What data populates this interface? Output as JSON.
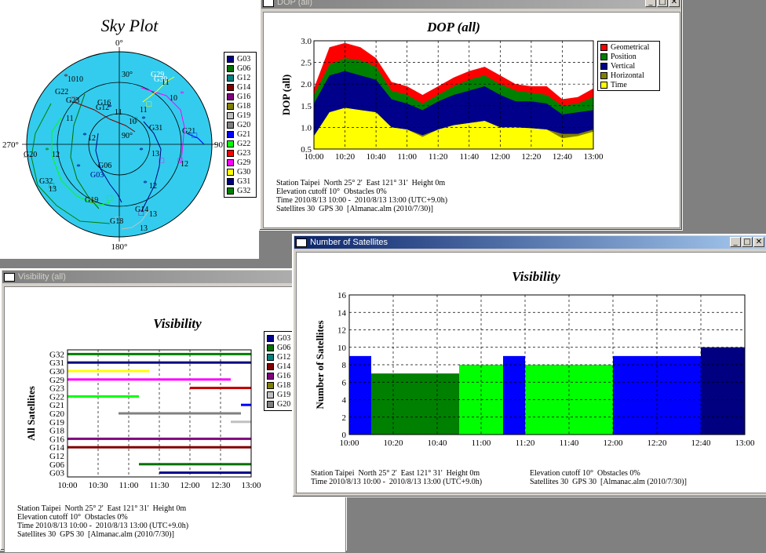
{
  "sky_window": {
    "title": "Sky Plot",
    "directions": {
      "n": "0°",
      "e": "90°",
      "s": "180°",
      "w": "270°"
    },
    "ring_labels": {
      "r30": "30°",
      "r90": "90°"
    },
    "legend": [
      {
        "name": "G03",
        "color": "#00008b"
      },
      {
        "name": "G06",
        "color": "#007000"
      },
      {
        "name": "G12",
        "color": "#008080"
      },
      {
        "name": "G14",
        "color": "#800000"
      },
      {
        "name": "G16",
        "color": "#800080"
      },
      {
        "name": "G18",
        "color": "#808000"
      },
      {
        "name": "G19",
        "color": "#c0c0c0"
      },
      {
        "name": "G20",
        "color": "#808080"
      },
      {
        "name": "G21",
        "color": "#0000ff"
      },
      {
        "name": "G22",
        "color": "#00ff00"
      },
      {
        "name": "G23",
        "color": "#ff0000"
      },
      {
        "name": "G29",
        "color": "#ff00ff"
      },
      {
        "name": "G30",
        "color": "#ffff00"
      },
      {
        "name": "G31",
        "color": "#000080"
      },
      {
        "name": "G32",
        "color": "#008000"
      }
    ],
    "sat_labels": [
      {
        "text": "G03",
        "color": "#00008b"
      },
      {
        "text": "G06",
        "color": "#000"
      },
      {
        "text": "G12",
        "color": "#000"
      },
      {
        "text": "G14",
        "color": "#000"
      },
      {
        "text": "G16",
        "color": "#000"
      },
      {
        "text": "G18",
        "color": "#000"
      },
      {
        "text": "G19",
        "color": "#000"
      },
      {
        "text": "G20",
        "color": "#000"
      },
      {
        "text": "G21",
        "color": "#000"
      },
      {
        "text": "G22",
        "color": "#000"
      },
      {
        "text": "G23",
        "color": "#000"
      },
      {
        "text": "G29",
        "color": "#fff"
      },
      {
        "text": "G30",
        "color": "#fff"
      },
      {
        "text": "G31",
        "color": "#000"
      },
      {
        "text": "G32",
        "color": "#000"
      }
    ],
    "hour_labels": [
      "10",
      "11",
      "12",
      "13",
      "10",
      "11",
      "12",
      "13",
      "10",
      "11",
      "12",
      "13",
      "10",
      "11",
      "12",
      "13"
    ]
  },
  "dop_window": {
    "window_title": "DOP (all)",
    "chart_data": {
      "type": "area",
      "title": "DOP (all)",
      "ylabel": "DOP (all)",
      "xlabel": "",
      "ylim": [
        0.5,
        3.0
      ],
      "yticks": [
        "0.5",
        "1.0",
        "1.5",
        "2.0",
        "2.5",
        "3.0"
      ],
      "x": [
        "10:00",
        "10:10",
        "10:20",
        "10:30",
        "10:40",
        "10:50",
        "11:00",
        "11:10",
        "11:20",
        "11:30",
        "11:40",
        "11:50",
        "12:00",
        "12:10",
        "12:20",
        "12:30",
        "12:40",
        "12:50",
        "13:00"
      ],
      "xtick_labels": [
        "10:00",
        "10:20",
        "10:40",
        "11:00",
        "11:20",
        "11:40",
        "12:00",
        "12:20",
        "12:40",
        "13:00"
      ],
      "series": [
        {
          "name": "Geometrical",
          "color": "#ff0000",
          "values": [
            1.9,
            2.85,
            2.95,
            2.85,
            2.6,
            2.05,
            1.95,
            1.75,
            1.95,
            2.15,
            2.3,
            2.4,
            2.2,
            2.0,
            1.95,
            1.95,
            1.65,
            1.7,
            1.9
          ]
        },
        {
          "name": "Position",
          "color": "#008000",
          "values": [
            1.75,
            2.45,
            2.6,
            2.55,
            2.4,
            1.85,
            1.75,
            1.55,
            1.75,
            1.95,
            2.1,
            2.2,
            2.0,
            1.85,
            1.8,
            1.75,
            1.5,
            1.55,
            1.7
          ]
        },
        {
          "name": "Vertical",
          "color": "#00008b",
          "values": [
            1.55,
            2.2,
            2.3,
            2.2,
            2.1,
            1.65,
            1.55,
            1.4,
            1.6,
            1.75,
            1.85,
            1.95,
            1.75,
            1.6,
            1.6,
            1.55,
            1.3,
            1.35,
            1.4
          ]
        },
        {
          "name": "Horizontal",
          "color": "#808000",
          "values": [
            0.8,
            1.35,
            1.45,
            1.4,
            1.35,
            1.0,
            0.95,
            0.82,
            0.95,
            1.05,
            1.1,
            1.15,
            1.0,
            1.0,
            0.98,
            0.95,
            0.85,
            0.85,
            0.95
          ]
        },
        {
          "name": "Time",
          "color": "#ffff00",
          "values": [
            0.8,
            1.35,
            1.45,
            1.4,
            1.35,
            1.0,
            0.95,
            0.78,
            0.95,
            1.05,
            1.1,
            1.15,
            1.0,
            1.0,
            0.98,
            0.95,
            0.75,
            0.8,
            0.9
          ]
        }
      ]
    },
    "info": [
      "Station Taipei  North 25° 2'  East 121° 31'  Height 0m",
      "Elevation cutoff 10°  Obstacles 0%",
      "Time 2010/8/13 10:00 -  2010/8/13 13:00 (UTC+9.0h)",
      "Satellites 30  GPS 30  [Almanac.alm (2010/7/30)]"
    ]
  },
  "vis_window": {
    "window_title": "Visibility (all)",
    "chart_data": {
      "type": "bar",
      "title": "Visibility",
      "ylabel": "All Satellites",
      "xlabel": "",
      "categories": [
        "G32",
        "G31",
        "G30",
        "G29",
        "G23",
        "G22",
        "G21",
        "G20",
        "G19",
        "G18",
        "G16",
        "G14",
        "G12",
        "G06",
        "G03"
      ],
      "xtick_labels": [
        "10:00",
        "10:30",
        "11:00",
        "11:30",
        "12:00",
        "12:30",
        "13:00"
      ],
      "xlim_minutes_after_10": [
        0,
        180
      ],
      "intervals": [
        {
          "sat": "G32",
          "color": "#008000",
          "start": 0,
          "end": 180
        },
        {
          "sat": "G31",
          "color": "#000080",
          "start": 0,
          "end": 180
        },
        {
          "sat": "G30",
          "color": "#ffff00",
          "start": 0,
          "end": 80
        },
        {
          "sat": "G29",
          "color": "#ff00ff",
          "start": 0,
          "end": 160
        },
        {
          "sat": "G23",
          "color": "#c00000",
          "start": 120,
          "end": 180
        },
        {
          "sat": "G22",
          "color": "#00ff00",
          "start": 0,
          "end": 70
        },
        {
          "sat": "G21",
          "color": "#0000ff",
          "start": 170,
          "end": 180
        },
        {
          "sat": "G20",
          "color": "#808080",
          "start": 50,
          "end": 170
        },
        {
          "sat": "G19",
          "color": "#c0c0c0",
          "start": 160,
          "end": 180
        },
        {
          "sat": "G16",
          "color": "#800080",
          "start": 0,
          "end": 180
        },
        {
          "sat": "G14",
          "color": "#800000",
          "start": 0,
          "end": 180
        },
        {
          "sat": "G06",
          "color": "#007000",
          "start": 70,
          "end": 180
        },
        {
          "sat": "G03",
          "color": "#00008b",
          "start": 90,
          "end": 180
        }
      ]
    },
    "legend": [
      {
        "name": "G03",
        "color": "#00008b"
      },
      {
        "name": "G06",
        "color": "#007000"
      },
      {
        "name": "G12",
        "color": "#008080"
      },
      {
        "name": "G14",
        "color": "#800000"
      },
      {
        "name": "G16",
        "color": "#800080"
      },
      {
        "name": "G18",
        "color": "#808000"
      },
      {
        "name": "G19",
        "color": "#c0c0c0"
      },
      {
        "name": "G20",
        "color": "#808080"
      }
    ],
    "info": [
      "Station Taipei  North 25° 2'  East 121° 31'  Height 0m",
      "Elevation cutoff 10°  Obstacles 0%",
      "Time 2010/8/13 10:00 -  2010/8/13 13:00 (UTC+9.0h)",
      "Satellites 30  GPS 30  [Almanac.alm (2010/7/30)]"
    ]
  },
  "num_window": {
    "window_title": "Number of Satellites",
    "chart_data": {
      "type": "bar",
      "title": "Visibility",
      "ylabel": "Number of Satellites",
      "xlabel": "",
      "ylim": [
        0,
        16
      ],
      "yticks": [
        "0",
        "2",
        "4",
        "6",
        "8",
        "10",
        "12",
        "14",
        "16"
      ],
      "xtick_labels": [
        "10:00",
        "10:20",
        "10:40",
        "11:00",
        "11:20",
        "11:40",
        "12:00",
        "12:20",
        "12:40",
        "13:00"
      ],
      "steps": [
        {
          "start": 0,
          "end": 10,
          "value": 9,
          "color": "#0000ff"
        },
        {
          "start": 10,
          "end": 50,
          "value": 7,
          "color": "#008000"
        },
        {
          "start": 50,
          "end": 70,
          "value": 8,
          "color": "#00ff00"
        },
        {
          "start": 70,
          "end": 80,
          "value": 9,
          "color": "#0000ff"
        },
        {
          "start": 80,
          "end": 120,
          "value": 8,
          "color": "#00ff00"
        },
        {
          "start": 120,
          "end": 160,
          "value": 9,
          "color": "#0000ff"
        },
        {
          "start": 160,
          "end": 180,
          "value": 10,
          "color": "#000080"
        }
      ]
    },
    "info_left": [
      "Station Taipei  North 25° 2'  East 121° 31'  Height 0m",
      "Time 2010/8/13 10:00 -  2010/8/13 13:00 (UTC+9.0h)"
    ],
    "info_right": [
      "Elevation cutoff 10°  Obstacles 0%",
      "Satellites 30  GPS 30  [Almanac.alm (2010/7/30)]"
    ]
  }
}
